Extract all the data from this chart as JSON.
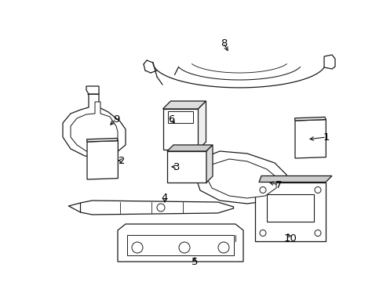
{
  "background_color": "#ffffff",
  "line_color": "#1a1a1a",
  "label_color": "#000000",
  "fig_width": 4.89,
  "fig_height": 3.6,
  "dpi": 100,
  "label_fontsize": 9.5
}
